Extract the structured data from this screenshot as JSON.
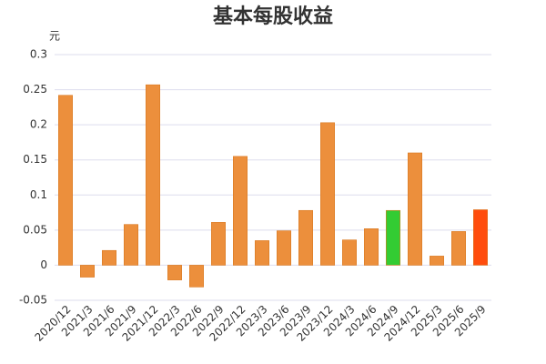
{
  "chart_data": {
    "type": "bar",
    "title": "基本每股收益",
    "y_label": "元",
    "categories": [
      "2020/12",
      "2021/3",
      "2021/6",
      "2021/9",
      "2021/12",
      "2022/3",
      "2022/6",
      "2022/9",
      "2022/12",
      "2023/3",
      "2023/6",
      "2023/9",
      "2023/12",
      "2024/3",
      "2024/6",
      "2024/9",
      "2024/12",
      "2025/3",
      "2025/6",
      "2025/9"
    ],
    "values": [
      0.242,
      -0.017,
      0.021,
      0.058,
      0.257,
      -0.021,
      -0.031,
      0.061,
      0.155,
      0.035,
      0.049,
      0.078,
      0.203,
      0.036,
      0.052,
      0.078,
      0.16,
      0.013,
      0.048,
      0.079
    ],
    "colors": [
      "#ec8f3c",
      "#ec8f3c",
      "#ec8f3c",
      "#ec8f3c",
      "#ec8f3c",
      "#ec8f3c",
      "#ec8f3c",
      "#ec8f3c",
      "#ec8f3c",
      "#ec8f3c",
      "#ec8f3c",
      "#ec8f3c",
      "#ec8f3c",
      "#ec8f3c",
      "#ec8f3c",
      "#33cc33",
      "#ec8f3c",
      "#ec8f3c",
      "#ec8f3c",
      "#ff4d0d"
    ],
    "ylim": [
      -0.05,
      0.3
    ],
    "yticks": [
      -0.05,
      0,
      0.05,
      0.1,
      0.15,
      0.2,
      0.25,
      0.3
    ],
    "grid": true
  }
}
